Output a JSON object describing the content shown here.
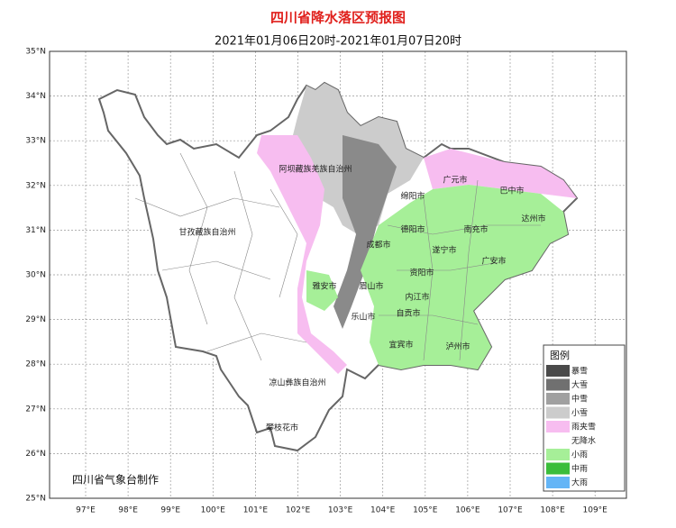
{
  "header": {
    "title": "四川省降水落区预报图",
    "subtitle": "2021年01月06日20时-2021年01月07日20时"
  },
  "axes": {
    "xticks": [
      {
        "value": 97,
        "label": "97°E"
      },
      {
        "value": 98,
        "label": "98°E"
      },
      {
        "value": 99,
        "label": "99°E"
      },
      {
        "value": 100,
        "label": "100°E"
      },
      {
        "value": 101,
        "label": "101°E"
      },
      {
        "value": 102,
        "label": "102°E"
      },
      {
        "value": 103,
        "label": "103°E"
      },
      {
        "value": 104,
        "label": "104°E"
      },
      {
        "value": 105,
        "label": "105°E"
      },
      {
        "value": 106,
        "label": "106°E"
      },
      {
        "value": 107,
        "label": "107°E"
      },
      {
        "value": 108,
        "label": "108°E"
      },
      {
        "value": 109,
        "label": "109°E"
      }
    ],
    "yticks": [
      {
        "value": 25,
        "label": "25°N"
      },
      {
        "value": 26,
        "label": "26°N"
      },
      {
        "value": 27,
        "label": "27°N"
      },
      {
        "value": 28,
        "label": "28°N"
      },
      {
        "value": 29,
        "label": "29°N"
      },
      {
        "value": 30,
        "label": "30°N"
      },
      {
        "value": 31,
        "label": "31°N"
      },
      {
        "value": 32,
        "label": "32°N"
      },
      {
        "value": 33,
        "label": "33°N"
      },
      {
        "value": 34,
        "label": "34°N"
      },
      {
        "value": 35,
        "label": "35°N"
      }
    ]
  },
  "places": [
    "阿坝藏族羌族自治州",
    "绵阳市",
    "广元市",
    "巴中市",
    "达州市",
    "甘孜藏族自治州",
    "德阳市",
    "南充市",
    "成都市",
    "遂宁市",
    "广安市",
    "资阳市",
    "雅安市",
    "眉山市",
    "内江市",
    "乐山市",
    "自贡市",
    "宜宾市",
    "泸州市",
    "凉山彝族自治州",
    "攀枝花市"
  ],
  "legend": {
    "title": "图例",
    "items": [
      {
        "label": "暴雪",
        "color": "#4a4a4a"
      },
      {
        "label": "大雪",
        "color": "#707070"
      },
      {
        "label": "中雪",
        "color": "#a0a0a0"
      },
      {
        "label": "小雪",
        "color": "#cccccc"
      },
      {
        "label": "雨夹雪",
        "color": "#f7bdf0"
      },
      {
        "label": "无降水",
        "color": "#ffffff"
      },
      {
        "label": "小雨",
        "color": "#a6ef98"
      },
      {
        "label": "中雨",
        "color": "#3bbd3b"
      },
      {
        "label": "大雨",
        "color": "#64b5f6"
      }
    ]
  },
  "credit": "四川省气象台制作"
}
